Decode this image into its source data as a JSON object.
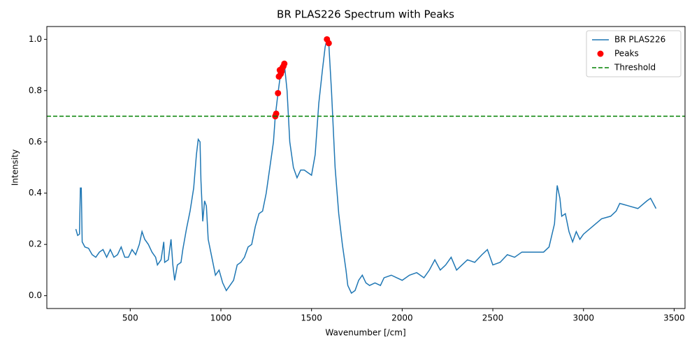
{
  "chart_data": {
    "type": "line",
    "title": "BR PLAS226 Spectrum with Peaks",
    "x_label": "Wavenumber [/cm]",
    "y_label": "Intensity",
    "xlim": [
      40,
      3560
    ],
    "ylim": [
      -0.05,
      1.05
    ],
    "xticks": [
      500,
      1000,
      1500,
      2000,
      2500,
      3000,
      3500
    ],
    "yticks": [
      {
        "value": 0,
        "label": "0.0"
      },
      0.2,
      0.4,
      0.6,
      0.8,
      {
        "value": 1,
        "label": "1.0"
      }
    ],
    "grid": false,
    "legend": "upper right",
    "series": [
      {
        "name": "BR PLAS226",
        "color": "#1f77b4",
        "style": "line",
        "x": [
          200,
          210,
          220,
          225,
          230,
          235,
          250,
          270,
          290,
          310,
          330,
          350,
          370,
          390,
          410,
          430,
          450,
          470,
          490,
          510,
          530,
          550,
          565,
          580,
          600,
          620,
          640,
          650,
          670,
          685,
          690,
          710,
          725,
          735,
          745,
          760,
          780,
          790,
          810,
          830,
          850,
          865,
          875,
          885,
          890,
          900,
          910,
          920,
          930,
          950,
          970,
          990,
          1010,
          1030,
          1050,
          1070,
          1090,
          1110,
          1130,
          1150,
          1170,
          1190,
          1210,
          1230,
          1250,
          1270,
          1290,
          1300,
          1315,
          1330,
          1350,
          1365,
          1380,
          1400,
          1420,
          1440,
          1460,
          1480,
          1500,
          1520,
          1540,
          1560,
          1575,
          1585,
          1595,
          1610,
          1630,
          1650,
          1670,
          1690,
          1700,
          1720,
          1740,
          1760,
          1780,
          1800,
          1820,
          1850,
          1880,
          1900,
          1940,
          1970,
          2000,
          2040,
          2080,
          2120,
          2150,
          2180,
          2210,
          2240,
          2270,
          2300,
          2330,
          2360,
          2400,
          2440,
          2470,
          2500,
          2540,
          2580,
          2620,
          2660,
          2700,
          2740,
          2780,
          2810,
          2840,
          2855,
          2870,
          2880,
          2900,
          2920,
          2940,
          2960,
          2980,
          3000,
          3050,
          3100,
          3150,
          3180,
          3200,
          3250,
          3300,
          3350,
          3370,
          3400
        ],
        "values": [
          0.26,
          0.235,
          0.24,
          0.42,
          0.42,
          0.21,
          0.19,
          0.185,
          0.16,
          0.15,
          0.17,
          0.18,
          0.15,
          0.18,
          0.15,
          0.16,
          0.19,
          0.15,
          0.15,
          0.18,
          0.16,
          0.2,
          0.25,
          0.22,
          0.2,
          0.17,
          0.15,
          0.12,
          0.14,
          0.21,
          0.13,
          0.14,
          0.22,
          0.12,
          0.06,
          0.12,
          0.13,
          0.18,
          0.26,
          0.33,
          0.42,
          0.55,
          0.61,
          0.6,
          0.45,
          0.29,
          0.37,
          0.35,
          0.22,
          0.15,
          0.08,
          0.1,
          0.05,
          0.02,
          0.04,
          0.06,
          0.12,
          0.13,
          0.15,
          0.19,
          0.2,
          0.27,
          0.32,
          0.33,
          0.4,
          0.5,
          0.6,
          0.7,
          0.79,
          0.87,
          0.905,
          0.8,
          0.6,
          0.5,
          0.46,
          0.49,
          0.49,
          0.48,
          0.47,
          0.55,
          0.75,
          0.88,
          0.97,
          1.0,
          0.985,
          0.8,
          0.5,
          0.32,
          0.2,
          0.1,
          0.04,
          0.01,
          0.02,
          0.06,
          0.08,
          0.05,
          0.04,
          0.05,
          0.04,
          0.07,
          0.08,
          0.07,
          0.06,
          0.08,
          0.09,
          0.07,
          0.1,
          0.14,
          0.1,
          0.12,
          0.15,
          0.1,
          0.12,
          0.14,
          0.13,
          0.16,
          0.18,
          0.12,
          0.13,
          0.16,
          0.15,
          0.17,
          0.17,
          0.17,
          0.17,
          0.19,
          0.28,
          0.43,
          0.38,
          0.31,
          0.32,
          0.25,
          0.21,
          0.25,
          0.22,
          0.24,
          0.27,
          0.3,
          0.31,
          0.33,
          0.36,
          0.35,
          0.34,
          0.37,
          0.38,
          0.34
        ]
      },
      {
        "name": "Peaks",
        "color": "#ff0000",
        "style": "scatter",
        "x": [
          1300,
          1305,
          1315,
          1320,
          1325,
          1330,
          1335,
          1340,
          1345,
          1350,
          1585,
          1595
        ],
        "values": [
          0.7,
          0.71,
          0.79,
          0.855,
          0.88,
          0.865,
          0.875,
          0.89,
          0.895,
          0.905,
          1.0,
          0.985
        ]
      },
      {
        "name": "Threshold",
        "color": "#008000",
        "style": "hline",
        "values": [
          0.7
        ]
      }
    ]
  }
}
